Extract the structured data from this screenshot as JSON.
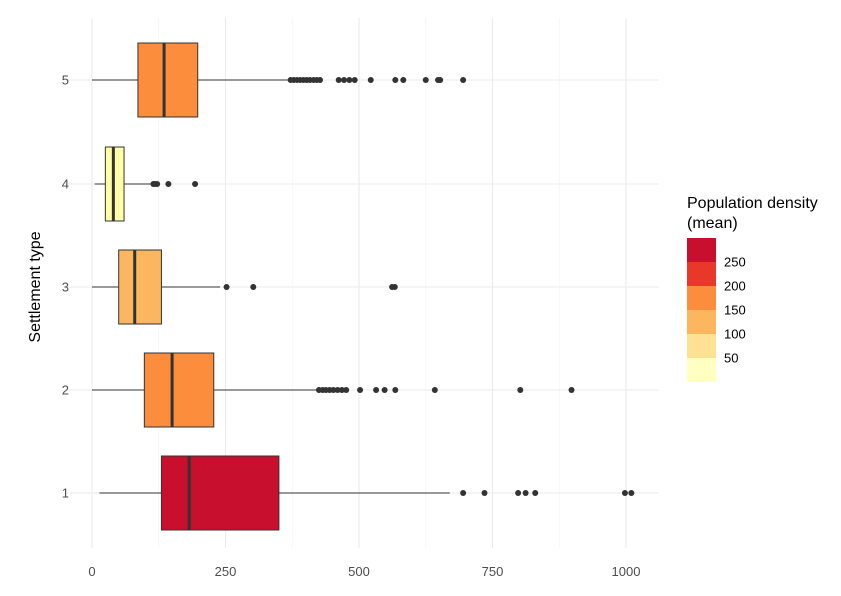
{
  "chart_data": {
    "type": "boxplot",
    "orientation": "horizontal",
    "xlabel": "",
    "ylabel": "Settlement type",
    "x_ticks": [
      0,
      250,
      500,
      750,
      1000
    ],
    "x_tick_labels": [
      "0",
      "250",
      "500",
      "750",
      "1000"
    ],
    "xlim": [
      -25,
      1060
    ],
    "y_categories": [
      "1",
      "2",
      "3",
      "4",
      "5"
    ],
    "grid": true,
    "legend": {
      "title_lines": [
        "Population density",
        "(mean)"
      ],
      "placement": "right",
      "labels": [
        "250",
        "200",
        "150",
        "100",
        "50"
      ],
      "label_values": [
        250,
        200,
        150,
        100,
        50
      ],
      "colors_top_to_bottom": [
        "#c8102e",
        "#e8382a",
        "#fb8d3d",
        "#fdb660",
        "#fee192",
        "#ffffc2"
      ]
    },
    "boxes": [
      {
        "category": "1",
        "whisker_low": 14,
        "q1": 130,
        "median": 182,
        "q3": 350,
        "whisker_high": 670,
        "fill": "#c8102e",
        "outliers": [
          695,
          735,
          798,
          812,
          830,
          998,
          1010
        ]
      },
      {
        "category": "2",
        "whisker_low": 0,
        "q1": 98,
        "median": 150,
        "q3": 228,
        "whisker_high": 425,
        "fill": "#fb8d3d",
        "outliers": [
          425,
          432,
          438,
          445,
          452,
          460,
          468,
          476,
          502,
          532,
          548,
          568,
          642,
          802,
          898
        ]
      },
      {
        "category": "3",
        "whisker_low": 0,
        "q1": 50,
        "median": 80,
        "q3": 130,
        "whisker_high": 240,
        "fill": "#fdb660",
        "outliers": [
          252,
          302,
          562,
          567
        ]
      },
      {
        "category": "4",
        "whisker_low": 5,
        "q1": 25,
        "median": 40,
        "q3": 60,
        "whisker_high": 112,
        "fill": "#ffffa8",
        "outliers": [
          115,
          118,
          122,
          143,
          193
        ]
      },
      {
        "category": "5",
        "whisker_low": 0,
        "q1": 86,
        "median": 135,
        "q3": 198,
        "whisker_high": 372,
        "fill": "#fb8d3d",
        "outliers": [
          372,
          378,
          384,
          390,
          396,
          402,
          408,
          415,
          421,
          427,
          462,
          472,
          482,
          492,
          522,
          568,
          583,
          625,
          648,
          652,
          695
        ]
      }
    ]
  }
}
